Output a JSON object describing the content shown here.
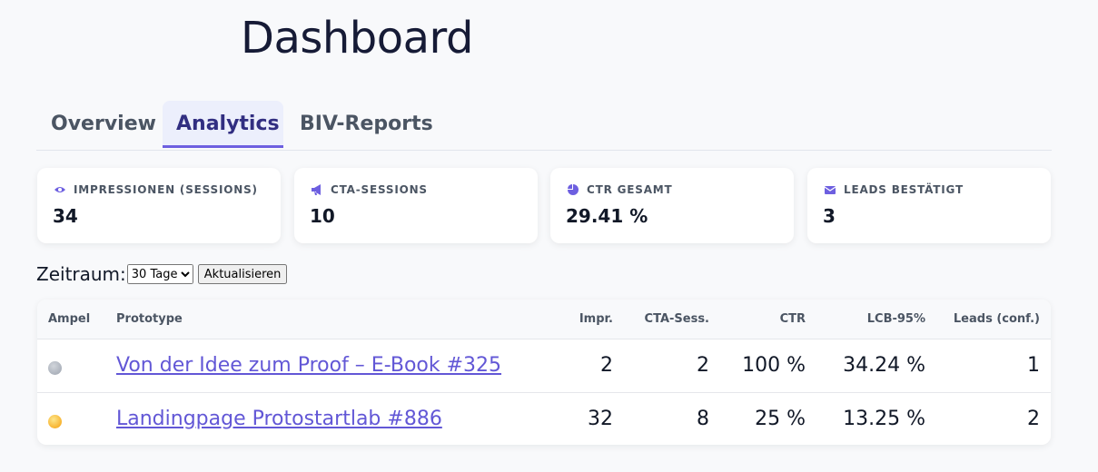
{
  "header": {
    "title": "Dashboard"
  },
  "tabs": [
    "Overview",
    "Analytics",
    "BIV-Reports"
  ],
  "active_tab": "Analytics",
  "cards": [
    {
      "label": "IMPRESSIONEN (SESSIONS)",
      "value": "34"
    },
    {
      "label": "CTA-SESSIONS",
      "value": "10"
    },
    {
      "label": "CTR GESAMT",
      "value": "29.41 %"
    },
    {
      "label": "LEADS BESTÄTIGT",
      "value": "3"
    }
  ],
  "filter": {
    "label": "Zeitraum:",
    "option": "30 Tage",
    "button": "Aktualisieren"
  },
  "table": {
    "columns": [
      "Ampel",
      "Prototype",
      "Impr.",
      "CTA-Sess.",
      "CTR",
      "LCB-95%",
      "Leads (conf.)"
    ],
    "rows": [
      {
        "prototype": "Von der Idee zum Proof – E-Book #325",
        "cells": [
          "2",
          "2",
          "100 %",
          "34.24 %",
          "1"
        ]
      },
      {
        "prototype": "Landingpage Protostartlab #886",
        "cells": [
          "32",
          "8",
          "25 %",
          "13.25 %",
          "2"
        ]
      }
    ]
  }
}
